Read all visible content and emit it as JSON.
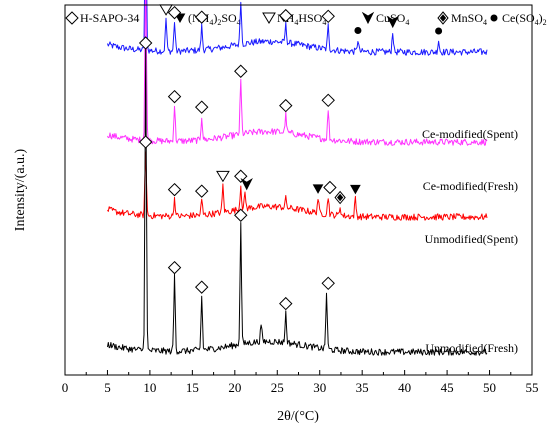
{
  "chart_data": {
    "type": "line",
    "xlabel": "2θ/(°C)",
    "ylabel": "Intensity/(a.u.)",
    "xlim": [
      0,
      55
    ],
    "x_ticks": [
      0,
      5,
      10,
      15,
      20,
      25,
      30,
      35,
      40,
      45,
      50,
      55
    ],
    "y_ticks_shown": false,
    "legend_placement": "top",
    "legend": [
      {
        "marker": "open-diamond",
        "label": "H-SAPO-34"
      },
      {
        "marker": "solid-down-triangle",
        "label": "(NH4)2SO4",
        "parts": [
          [
            "(NH",
            ""
          ],
          [
            "4",
            "sub"
          ],
          [
            ")",
            ""
          ],
          [
            "2",
            "sub"
          ],
          [
            "SO",
            ""
          ],
          [
            "4",
            "sub"
          ]
        ]
      },
      {
        "marker": "open-down-triangle",
        "label": "NH4HSO4",
        "parts": [
          [
            "NH",
            ""
          ],
          [
            "4",
            "sub"
          ],
          [
            "HSO",
            ""
          ],
          [
            "4",
            "sub"
          ]
        ]
      },
      {
        "marker": "solid-chevron",
        "label": "CuSO4",
        "parts": [
          [
            "CuSO",
            ""
          ],
          [
            "4",
            "sub"
          ]
        ]
      },
      {
        "marker": "dotted-diamond",
        "label": "MnSO4",
        "parts": [
          [
            "MnSO",
            ""
          ],
          [
            "4",
            "sub"
          ]
        ]
      },
      {
        "marker": "solid-circle",
        "label": "Ce(SO4)2",
        "parts": [
          [
            "Ce(SO",
            ""
          ],
          [
            "4",
            "sub"
          ],
          [
            ")",
            ""
          ],
          [
            "2",
            "sub"
          ]
        ]
      }
    ],
    "peak_positions": [
      9.5,
      12.9,
      16.1,
      20.7,
      26.0,
      31.0
    ],
    "series": [
      {
        "name": "Ce-modified(Spent)",
        "color": "#1a1aff",
        "baseline": 10.0,
        "peaks": [
          [
            9.5,
            5.2
          ],
          [
            11.9,
            1.1
          ],
          [
            12.9,
            1.0
          ],
          [
            16.1,
            0.8
          ],
          [
            20.7,
            1.5
          ],
          [
            26.0,
            0.6
          ],
          [
            31.0,
            0.8
          ],
          [
            34.5,
            0.4
          ],
          [
            38.6,
            0.7
          ],
          [
            44.0,
            0.4
          ]
        ],
        "markers": [
          {
            "x": 9.5,
            "type": "open-diamond"
          },
          {
            "x": 11.9,
            "type": "open-down-triangle"
          },
          {
            "x": 12.9,
            "type": "open-diamond"
          },
          {
            "x": 16.1,
            "type": "open-diamond"
          },
          {
            "x": 20.7,
            "type": "open-diamond"
          },
          {
            "x": 26.0,
            "type": "open-diamond"
          },
          {
            "x": 31.0,
            "type": "open-diamond"
          },
          {
            "x": 34.5,
            "type": "solid-circle"
          },
          {
            "x": 38.6,
            "type": "solid-chevron"
          },
          {
            "x": 44.0,
            "type": "solid-circle"
          }
        ]
      },
      {
        "name": "Ce-modified(Fresh)",
        "color": "#ff33ff",
        "baseline": 7.0,
        "peaks": [
          [
            9.5,
            5.7
          ],
          [
            12.9,
            1.2
          ],
          [
            16.1,
            0.8
          ],
          [
            20.7,
            1.8
          ],
          [
            26.0,
            0.6
          ],
          [
            31.0,
            1.0
          ]
        ],
        "markers": [
          {
            "x": 9.5,
            "type": "open-diamond"
          },
          {
            "x": 12.9,
            "type": "open-diamond"
          },
          {
            "x": 16.1,
            "type": "open-diamond"
          },
          {
            "x": 20.7,
            "type": "open-diamond"
          },
          {
            "x": 26.0,
            "type": "open-diamond"
          },
          {
            "x": 31.0,
            "type": "open-diamond"
          }
        ]
      },
      {
        "name": "Unmodified(Spent)",
        "color": "#ff0000",
        "baseline": 4.5,
        "peaks": [
          [
            9.5,
            2.2
          ],
          [
            12.9,
            0.6
          ],
          [
            16.1,
            0.5
          ],
          [
            18.6,
            0.9
          ],
          [
            20.7,
            0.8
          ],
          [
            21.2,
            0.5
          ],
          [
            26.0,
            0.3
          ],
          [
            29.8,
            0.5
          ],
          [
            31.0,
            0.6
          ],
          [
            32.4,
            0.3
          ],
          [
            34.2,
            0.6
          ]
        ],
        "markers": [
          {
            "x": 9.5,
            "type": "open-diamond"
          },
          {
            "x": 12.9,
            "type": "open-diamond"
          },
          {
            "x": 16.1,
            "type": "open-diamond"
          },
          {
            "x": 18.6,
            "type": "open-down-triangle"
          },
          {
            "x": 20.7,
            "type": "open-diamond"
          },
          {
            "x": 21.4,
            "type": "solid-chevron"
          },
          {
            "x": 29.8,
            "type": "solid-down-triangle"
          },
          {
            "x": 31.2,
            "type": "open-diamond"
          },
          {
            "x": 32.4,
            "type": "dotted-diamond"
          },
          {
            "x": 34.2,
            "type": "solid-down-triangle"
          }
        ]
      },
      {
        "name": "Unmodified(Fresh)",
        "color": "#000000",
        "baseline": 0.0,
        "peaks": [
          [
            9.5,
            10.0
          ],
          [
            12.9,
            2.5
          ],
          [
            16.1,
            1.8
          ],
          [
            20.7,
            4.0
          ],
          [
            23.1,
            0.6
          ],
          [
            26.0,
            1.0
          ],
          [
            30.8,
            1.9
          ]
        ],
        "markers": [
          {
            "x": 9.5,
            "type": "open-diamond"
          },
          {
            "x": 12.9,
            "type": "open-diamond"
          },
          {
            "x": 16.1,
            "type": "open-diamond"
          },
          {
            "x": 20.7,
            "type": "open-diamond"
          },
          {
            "x": 26.0,
            "type": "open-diamond"
          },
          {
            "x": 31.0,
            "type": "open-diamond"
          }
        ]
      }
    ]
  }
}
